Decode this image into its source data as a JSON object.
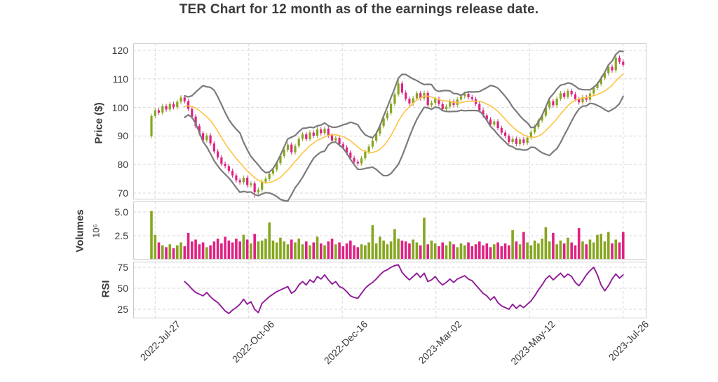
{
  "title": "TER Chart for 12 month as of the earnings release date.",
  "colors": {
    "up": "#86a61f",
    "down": "#df2283",
    "band": "#7b7b7b",
    "sma": "#ffc342",
    "rsi": "#8f1b97",
    "grid": "#d8d8d8",
    "border": "#c9c9c9",
    "text": "#3a3a3a",
    "background": "#ffffff"
  },
  "chart_data": {
    "type": "candlestick+bollinger_bands+volume+rsi",
    "x_step_days": 2,
    "x_ticks": [
      {
        "day": 2,
        "label": "2022-Jul-27"
      },
      {
        "day": 52.8,
        "label": "2022-Oct-06"
      },
      {
        "day": 103.6,
        "label": "2022-Dec-16"
      },
      {
        "day": 154.4,
        "label": "2023-Mar-02"
      },
      {
        "day": 205.2,
        "label": "2023-May-12"
      },
      {
        "day": 256,
        "label": "2023-Jul-26"
      }
    ],
    "price": {
      "ylabel": "Price ($)",
      "ylim": [
        67.8,
        122.45
      ],
      "ticks": [
        {
          "value": 70,
          "label": "70"
        },
        {
          "value": 80,
          "label": "80"
        },
        {
          "value": 90,
          "label": "90"
        },
        {
          "value": 100,
          "label": "100"
        },
        {
          "value": 110,
          "label": "110"
        },
        {
          "value": 120,
          "label": "120"
        }
      ],
      "first_open": 90.0,
      "wick": 0.8,
      "high_overrides": {
        "67": 110.6,
        "126": 118.4
      },
      "low_overrides": {
        "0": 89.2,
        "28": 68.4
      },
      "close": [
        97.0,
        99.0,
        98.2,
        100.5,
        99.3,
        101.2,
        100.1,
        102.0,
        103.5,
        102.2,
        99.5,
        96.8,
        93.5,
        91.0,
        88.5,
        90.2,
        87.4,
        84.6,
        82.5,
        80.3,
        79.5,
        77.8,
        76.2,
        74.5,
        73.8,
        75.4,
        72.8,
        73.4,
        70.3,
        71.2,
        74.0,
        75.0,
        76.8,
        78.2,
        80.5,
        83.0,
        85.2,
        87.0,
        84.3,
        86.5,
        89.0,
        90.6,
        88.9,
        91.2,
        90.1,
        92.3,
        91.0,
        92.6,
        90.2,
        88.4,
        89.3,
        87.1,
        86.0,
        84.2,
        82.3,
        81.0,
        80.4,
        82.2,
        84.5,
        86.3,
        88.4,
        90.8,
        93.5,
        96.2,
        98.0,
        101.3,
        104.6,
        108.4,
        105.2,
        103.0,
        101.4,
        103.2,
        105.0,
        103.2,
        105.1,
        100.8,
        101.6,
        103.0,
        101.2,
        99.4,
        100.3,
        102.1,
        100.9,
        102.8,
        103.9,
        104.8,
        103.6,
        102.9,
        101.2,
        99.0,
        97.2,
        95.8,
        94.0,
        95.1,
        92.8,
        91.2,
        90.0,
        87.9,
        89.0,
        87.2,
        88.8,
        87.6,
        89.4,
        91.3,
        93.2,
        95.4,
        97.1,
        100.0,
        102.2,
        100.8,
        103.1,
        105.0,
        103.7,
        105.8,
        104.6,
        102.9,
        101.8,
        103.6,
        102.7,
        104.9,
        106.8,
        108.2,
        110.3,
        112.0,
        114.2,
        113.0,
        117.4,
        116.0,
        114.9
      ]
    },
    "bollinger": {
      "window": 10,
      "sigma": 2
    },
    "volume": {
      "ylabel": "Volumes",
      "scale_label": "10⁶",
      "ylim": [
        0,
        6.1
      ],
      "ticks": [
        {
          "value": 2.5,
          "label": "2.5"
        },
        {
          "value": 5.0,
          "label": "5.0"
        }
      ],
      "values": [
        5.1,
        2.6,
        1.8,
        1.5,
        1.3,
        1.6,
        1.2,
        1.5,
        1.8,
        1.4,
        2.8,
        1.9,
        2.1,
        1.6,
        1.8,
        1.3,
        1.5,
        1.9,
        2.2,
        1.7,
        2.4,
        2.0,
        1.8,
        2.2,
        1.9,
        2.6,
        2.1,
        1.7,
        2.7,
        1.9,
        2.0,
        2.2,
        3.9,
        2.0,
        1.8,
        2.3,
        1.9,
        1.6,
        2.1,
        1.8,
        2.2,
        1.6,
        1.9,
        1.5,
        1.8,
        2.4,
        1.7,
        1.5,
        1.9,
        2.2,
        1.6,
        1.8,
        1.4,
        1.7,
        2.0,
        1.5,
        1.3,
        1.6,
        1.5,
        1.8,
        3.6,
        1.7,
        2.4,
        2.0,
        1.6,
        1.9,
        3.2,
        2.2,
        2.0,
        1.9,
        1.7,
        2.1,
        1.8,
        1.5,
        4.4,
        1.6,
        2.0,
        1.7,
        1.4,
        1.8,
        1.5,
        1.9,
        1.6,
        1.3,
        1.7,
        1.5,
        1.8,
        1.4,
        1.6,
        1.9,
        1.5,
        1.7,
        1.3,
        1.6,
        1.8,
        1.4,
        1.7,
        1.5,
        3.1,
        1.9,
        1.6,
        2.9,
        1.8,
        1.5,
        2.0,
        1.7,
        2.2,
        3.4,
        1.9,
        2.8,
        1.6,
        2.0,
        1.7,
        2.3,
        1.8,
        1.5,
        3.3,
        1.9,
        1.6,
        2.1,
        1.8,
        2.6,
        2.7,
        1.9,
        2.9,
        1.7,
        2.1,
        1.8,
        2.9
      ]
    },
    "rsi": {
      "ylabel": "RSI",
      "ylim": [
        14.2,
        81.7
      ],
      "ticks": [
        {
          "value": 25,
          "label": "25"
        },
        {
          "value": 50,
          "label": "50"
        },
        {
          "value": 75,
          "label": "75"
        }
      ],
      "values": [
        null,
        null,
        null,
        null,
        null,
        null,
        null,
        null,
        null,
        58,
        54,
        49,
        45,
        43,
        41,
        45,
        40,
        36,
        33,
        28,
        23,
        20,
        24,
        27,
        31,
        37,
        31,
        34,
        25,
        21,
        32,
        36,
        40,
        43,
        46,
        48,
        50,
        52,
        44,
        47,
        54,
        58,
        54,
        60,
        57,
        64,
        61,
        66,
        60,
        55,
        58,
        52,
        50,
        46,
        41,
        39,
        38,
        44,
        50,
        54,
        57,
        61,
        66,
        70,
        72,
        75,
        77,
        78,
        69,
        64,
        60,
        64,
        68,
        63,
        68,
        58,
        60,
        64,
        58,
        54,
        57,
        61,
        57,
        61,
        63,
        65,
        61,
        59,
        54,
        49,
        44,
        41,
        36,
        40,
        33,
        29,
        27,
        25,
        31,
        26,
        30,
        27,
        31,
        35,
        41,
        48,
        54,
        61,
        65,
        60,
        64,
        68,
        63,
        67,
        64,
        57,
        53,
        59,
        66,
        71,
        75,
        66,
        54,
        47,
        53,
        61,
        67,
        62,
        66
      ]
    }
  }
}
